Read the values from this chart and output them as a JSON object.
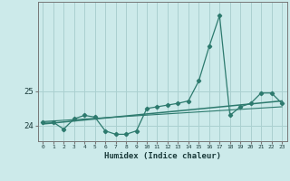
{
  "xlabel": "Humidex (Indice chaleur)",
  "bg_color": "#cceaea",
  "grid_color": "#aad0d0",
  "line_color": "#2d7a6e",
  "xlim": [
    -0.5,
    23.5
  ],
  "ylim": [
    23.55,
    27.6
  ],
  "yticks": [
    24,
    25
  ],
  "xticks": [
    0,
    1,
    2,
    3,
    4,
    5,
    6,
    7,
    8,
    9,
    10,
    11,
    12,
    13,
    14,
    15,
    16,
    17,
    18,
    19,
    20,
    21,
    22,
    23
  ],
  "series1_x": [
    0,
    1,
    2,
    3,
    4,
    5,
    6,
    7,
    8,
    9,
    10,
    11,
    12,
    13,
    14,
    15,
    16,
    17,
    18,
    19,
    20,
    21,
    22,
    23
  ],
  "series1_y": [
    24.1,
    24.1,
    23.9,
    24.2,
    24.3,
    24.25,
    23.85,
    23.75,
    23.75,
    23.85,
    24.5,
    24.55,
    24.6,
    24.65,
    24.72,
    25.3,
    26.3,
    27.2,
    24.3,
    24.55,
    24.65,
    24.95,
    24.95,
    24.65
  ],
  "trend1_x": [
    0,
    23
  ],
  "trend1_y": [
    24.05,
    24.72
  ],
  "trend2_x": [
    0,
    23
  ],
  "trend2_y": [
    24.12,
    24.55
  ]
}
